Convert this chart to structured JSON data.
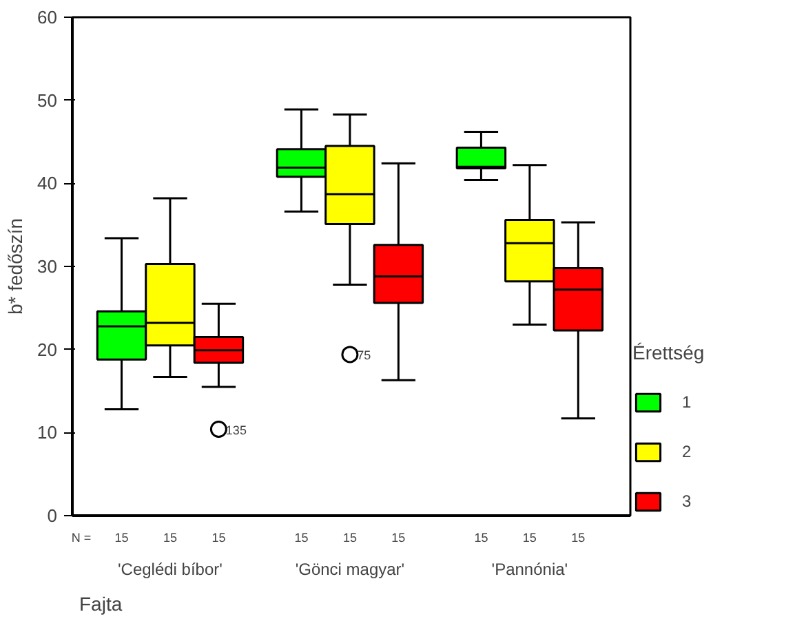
{
  "chart_data": {
    "type": "box",
    "categories": [
      "'Ceglédi bíbor'",
      "'Gönci magyar'",
      "'Pannónia'"
    ],
    "xlabel": "Fajta",
    "ylabel": "b* fedőszín",
    "legend_title": "Érettség",
    "ylim": [
      0,
      60
    ],
    "yticks": [
      0,
      10,
      20,
      30,
      40,
      50,
      60
    ],
    "grid": false,
    "legend": "right",
    "series": [
      {
        "name": "1",
        "color": "#00ff00",
        "boxes": [
          {
            "low": 12.8,
            "q1": 18.8,
            "median": 22.8,
            "q3": 24.6,
            "high": 33.4
          },
          {
            "low": 36.6,
            "q1": 40.8,
            "median": 41.9,
            "q3": 44.1,
            "high": 48.9
          },
          {
            "low": 40.4,
            "q1": 41.8,
            "median": 42.0,
            "q3": 44.3,
            "high": 46.2
          }
        ]
      },
      {
        "name": "2",
        "color": "#ffff00",
        "boxes": [
          {
            "low": 16.7,
            "q1": 20.5,
            "median": 23.2,
            "q3": 30.3,
            "high": 38.2
          },
          {
            "low": 27.8,
            "q1": 35.1,
            "median": 38.7,
            "q3": 44.5,
            "high": 48.3,
            "outliers": [
              19.4
            ]
          },
          {
            "low": 23.0,
            "q1": 28.2,
            "median": 32.8,
            "q3": 35.6,
            "high": 42.2
          }
        ]
      },
      {
        "name": "3",
        "color": "#ff0000",
        "boxes": [
          {
            "low": 15.5,
            "q1": 18.4,
            "median": 19.9,
            "q3": 21.5,
            "high": 25.5,
            "outliers": [
              10.4
            ]
          },
          {
            "low": 16.3,
            "q1": 25.6,
            "median": 28.8,
            "q3": 32.6,
            "high": 42.4
          },
          {
            "low": 11.7,
            "q1": 22.3,
            "median": 27.2,
            "q3": 29.8,
            "high": 35.3
          }
        ]
      }
    ],
    "annotations": [
      "N =",
      "15",
      "15",
      "15",
      "15",
      "15",
      "15",
      "15",
      "15",
      "15",
      "135",
      "75"
    ]
  }
}
